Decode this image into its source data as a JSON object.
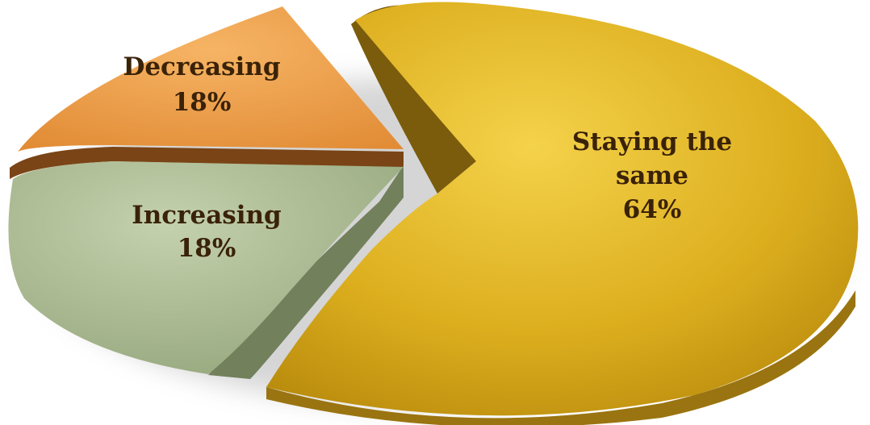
{
  "chart_data": {
    "type": "pie",
    "style": "3d-exploded",
    "title": "",
    "slices": [
      {
        "label": "Staying the same",
        "value": 64,
        "display": "64%",
        "color": "#d8a818",
        "side_color": "#7a5c0c"
      },
      {
        "label": "Increasing",
        "value": 18,
        "display": "18%",
        "color": "#a8b890",
        "side_color": "#707c5c"
      },
      {
        "label": "Decreasing",
        "value": 18,
        "display": "18%",
        "color": "#e89a48",
        "side_color": "#7a4416"
      }
    ],
    "legend": "none",
    "label_color": "#3a2208"
  }
}
